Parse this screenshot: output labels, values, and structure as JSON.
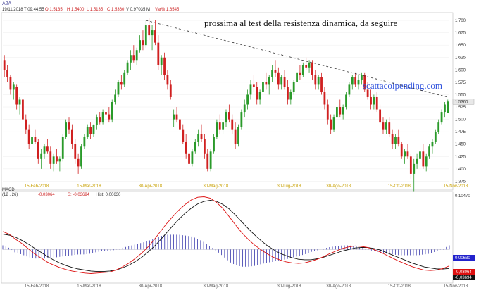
{
  "chart_data": {
    "type": "candlestick",
    "ticker": "A2A",
    "header": {
      "date": "19/11/2018",
      "time": "T 09:44:55",
      "open": "O 1,5135",
      "high": "H 1,5400",
      "low": "L 1,5135",
      "close": "C 1,5360",
      "volume": "V 0,97035 M",
      "var": "Var% 1,6545"
    },
    "annotation": "prossima al test della resistenza dinamica, da seguire",
    "watermark": "scattacolpending.com",
    "last_price": "1,5360",
    "y_ticks": [
      "1,700",
      "1,675",
      "1,650",
      "1,625",
      "1,600",
      "1,575",
      "1,550",
      "1,525",
      "1,500",
      "1,475",
      "1,450",
      "1,425",
      "1,400",
      "1,375"
    ],
    "ylim": [
      1.36,
      1.71
    ],
    "x_ticks": [
      "15-Feb-2018",
      "15-Mar-2018",
      "30-Apr-2018",
      "30-Mag-2018",
      "30-Lug-2018",
      "30-Ago-2018",
      "15-Ott-2018",
      "15-Nov-2018"
    ],
    "candles": [
      [
        1.62,
        1.63,
        1.585,
        1.6
      ],
      [
        1.6,
        1.61,
        1.575,
        1.585
      ],
      [
        1.585,
        1.59,
        1.55,
        1.56
      ],
      [
        1.56,
        1.575,
        1.54,
        1.57
      ],
      [
        1.565,
        1.57,
        1.52,
        1.53
      ],
      [
        1.53,
        1.545,
        1.51,
        1.54
      ],
      [
        1.54,
        1.545,
        1.49,
        1.5
      ],
      [
        1.5,
        1.51,
        1.47,
        1.48
      ],
      [
        1.48,
        1.49,
        1.44,
        1.45
      ],
      [
        1.45,
        1.47,
        1.43,
        1.465
      ],
      [
        1.465,
        1.48,
        1.45,
        1.455
      ],
      [
        1.455,
        1.46,
        1.41,
        1.42
      ],
      [
        1.42,
        1.44,
        1.4,
        1.43
      ],
      [
        1.43,
        1.45,
        1.42,
        1.445
      ],
      [
        1.445,
        1.46,
        1.43,
        1.435
      ],
      [
        1.435,
        1.445,
        1.4,
        1.41
      ],
      [
        1.41,
        1.43,
        1.395,
        1.425
      ],
      [
        1.425,
        1.44,
        1.41,
        1.415
      ],
      [
        1.415,
        1.425,
        1.395,
        1.42
      ],
      [
        1.42,
        1.47,
        1.415,
        1.465
      ],
      [
        1.465,
        1.5,
        1.46,
        1.495
      ],
      [
        1.495,
        1.505,
        1.47,
        1.48
      ],
      [
        1.48,
        1.49,
        1.44,
        1.45
      ],
      [
        1.45,
        1.46,
        1.41,
        1.42
      ],
      [
        1.42,
        1.43,
        1.39,
        1.405
      ],
      [
        1.405,
        1.45,
        1.4,
        1.445
      ],
      [
        1.445,
        1.47,
        1.44,
        1.465
      ],
      [
        1.465,
        1.49,
        1.46,
        1.485
      ],
      [
        1.485,
        1.495,
        1.46,
        1.47
      ],
      [
        1.47,
        1.49,
        1.465,
        1.488
      ],
      [
        1.488,
        1.51,
        1.48,
        1.505
      ],
      [
        1.505,
        1.515,
        1.49,
        1.495
      ],
      [
        1.495,
        1.52,
        1.49,
        1.515
      ],
      [
        1.515,
        1.53,
        1.5,
        1.51
      ],
      [
        1.51,
        1.525,
        1.495,
        1.5
      ],
      [
        1.5,
        1.54,
        1.495,
        1.535
      ],
      [
        1.535,
        1.56,
        1.53,
        1.55
      ],
      [
        1.55,
        1.58,
        1.545,
        1.575
      ],
      [
        1.575,
        1.59,
        1.56,
        1.57
      ],
      [
        1.57,
        1.6,
        1.565,
        1.595
      ],
      [
        1.595,
        1.62,
        1.59,
        1.615
      ],
      [
        1.615,
        1.64,
        1.6,
        1.63
      ],
      [
        1.63,
        1.65,
        1.615,
        1.62
      ],
      [
        1.62,
        1.645,
        1.61,
        1.64
      ],
      [
        1.64,
        1.67,
        1.635,
        1.66
      ],
      [
        1.66,
        1.68,
        1.64,
        1.65
      ],
      [
        1.65,
        1.7,
        1.645,
        1.69
      ],
      [
        1.69,
        1.705,
        1.66,
        1.67
      ],
      [
        1.67,
        1.69,
        1.64,
        1.68
      ],
      [
        1.68,
        1.7,
        1.65,
        1.655
      ],
      [
        1.655,
        1.67,
        1.6,
        1.61
      ],
      [
        1.61,
        1.63,
        1.59,
        1.625
      ],
      [
        1.625,
        1.635,
        1.58,
        1.59
      ],
      [
        1.59,
        1.6,
        1.56,
        1.57
      ],
      [
        1.57,
        1.58,
        1.54,
        1.545
      ],
      [
        1.5,
        1.52,
        1.485,
        1.51
      ],
      [
        1.51,
        1.525,
        1.495,
        1.5
      ],
      [
        1.5,
        1.51,
        1.47,
        1.48
      ],
      [
        1.48,
        1.49,
        1.45,
        1.455
      ],
      [
        1.455,
        1.47,
        1.42,
        1.43
      ],
      [
        1.43,
        1.445,
        1.4,
        1.41
      ],
      [
        1.41,
        1.44,
        1.405,
        1.435
      ],
      [
        1.435,
        1.46,
        1.43,
        1.455
      ],
      [
        1.455,
        1.48,
        1.445,
        1.47
      ],
      [
        1.47,
        1.49,
        1.455,
        1.46
      ],
      [
        1.46,
        1.47,
        1.42,
        1.43
      ],
      [
        1.43,
        1.44,
        1.395,
        1.4
      ],
      [
        1.4,
        1.44,
        1.395,
        1.435
      ],
      [
        1.435,
        1.47,
        1.43,
        1.465
      ],
      [
        1.465,
        1.5,
        1.46,
        1.495
      ],
      [
        1.495,
        1.51,
        1.47,
        1.48
      ],
      [
        1.48,
        1.5,
        1.47,
        1.495
      ],
      [
        1.495,
        1.52,
        1.485,
        1.515
      ],
      [
        1.515,
        1.53,
        1.495,
        1.5
      ],
      [
        1.5,
        1.51,
        1.47,
        1.48
      ],
      [
        1.48,
        1.495,
        1.44,
        1.45
      ],
      [
        1.45,
        1.49,
        1.445,
        1.485
      ],
      [
        1.485,
        1.52,
        1.48,
        1.515
      ],
      [
        1.515,
        1.54,
        1.505,
        1.53
      ],
      [
        1.53,
        1.56,
        1.52,
        1.55
      ],
      [
        1.55,
        1.58,
        1.54,
        1.57
      ],
      [
        1.57,
        1.59,
        1.555,
        1.565
      ],
      [
        1.565,
        1.575,
        1.53,
        1.54
      ],
      [
        1.54,
        1.56,
        1.53,
        1.555
      ],
      [
        1.555,
        1.58,
        1.55,
        1.575
      ],
      [
        1.575,
        1.595,
        1.56,
        1.57
      ],
      [
        1.57,
        1.59,
        1.55,
        1.585
      ],
      [
        1.585,
        1.61,
        1.575,
        1.6
      ],
      [
        1.6,
        1.62,
        1.585,
        1.595
      ],
      [
        1.595,
        1.605,
        1.56,
        1.57
      ],
      [
        1.57,
        1.59,
        1.56,
        1.585
      ],
      [
        1.585,
        1.6,
        1.56,
        1.565
      ],
      [
        1.565,
        1.58,
        1.53,
        1.54
      ],
      [
        1.54,
        1.56,
        1.53,
        1.555
      ],
      [
        1.555,
        1.58,
        1.55,
        1.575
      ],
      [
        1.575,
        1.6,
        1.565,
        1.595
      ],
      [
        1.595,
        1.61,
        1.58,
        1.59
      ],
      [
        1.59,
        1.615,
        1.585,
        1.61
      ],
      [
        1.61,
        1.625,
        1.6,
        1.605
      ],
      [
        1.605,
        1.62,
        1.595,
        1.615
      ],
      [
        1.615,
        1.62,
        1.58,
        1.59
      ],
      [
        1.59,
        1.6,
        1.56,
        1.57
      ],
      [
        1.57,
        1.59,
        1.56,
        1.585
      ],
      [
        1.585,
        1.595,
        1.55,
        1.555
      ],
      [
        1.555,
        1.565,
        1.52,
        1.53
      ],
      [
        1.53,
        1.54,
        1.49,
        1.5
      ],
      [
        1.5,
        1.51,
        1.47,
        1.48
      ],
      [
        1.48,
        1.51,
        1.475,
        1.505
      ],
      [
        1.505,
        1.53,
        1.5,
        1.525
      ],
      [
        1.525,
        1.54,
        1.505,
        1.51
      ],
      [
        1.51,
        1.53,
        1.5,
        1.525
      ],
      [
        1.525,
        1.555,
        1.52,
        1.55
      ],
      [
        1.55,
        1.575,
        1.545,
        1.57
      ],
      [
        1.57,
        1.59,
        1.56,
        1.585
      ],
      [
        1.585,
        1.595,
        1.565,
        1.57
      ],
      [
        1.57,
        1.59,
        1.56,
        1.58
      ],
      [
        1.58,
        1.595,
        1.57,
        1.59
      ],
      [
        1.59,
        1.595,
        1.555,
        1.56
      ],
      [
        1.56,
        1.575,
        1.54,
        1.545
      ],
      [
        1.545,
        1.56,
        1.52,
        1.53
      ],
      [
        1.53,
        1.55,
        1.52,
        1.545
      ],
      [
        1.545,
        1.555,
        1.515,
        1.52
      ],
      [
        1.52,
        1.53,
        1.49,
        1.495
      ],
      [
        1.495,
        1.505,
        1.47,
        1.48
      ],
      [
        1.48,
        1.5,
        1.47,
        1.495
      ],
      [
        1.495,
        1.505,
        1.465,
        1.47
      ],
      [
        1.47,
        1.48,
        1.44,
        1.45
      ],
      [
        1.45,
        1.47,
        1.44,
        1.465
      ],
      [
        1.465,
        1.48,
        1.445,
        1.45
      ],
      [
        1.45,
        1.455,
        1.42,
        1.425
      ],
      [
        1.425,
        1.44,
        1.41,
        1.435
      ],
      [
        1.435,
        1.45,
        1.42,
        1.425
      ],
      [
        1.425,
        1.43,
        1.38,
        1.39
      ],
      [
        1.39,
        1.42,
        1.355,
        1.41
      ],
      [
        1.41,
        1.43,
        1.4,
        1.42
      ],
      [
        1.42,
        1.44,
        1.41,
        1.435
      ],
      [
        1.435,
        1.45,
        1.4,
        1.405
      ],
      [
        1.405,
        1.43,
        1.395,
        1.425
      ],
      [
        1.425,
        1.45,
        1.42,
        1.445
      ],
      [
        1.445,
        1.46,
        1.43,
        1.455
      ],
      [
        1.455,
        1.48,
        1.45,
        1.475
      ],
      [
        1.475,
        1.5,
        1.47,
        1.495
      ],
      [
        1.495,
        1.52,
        1.49,
        1.515
      ],
      [
        1.515,
        1.535,
        1.505,
        1.53
      ],
      [
        1.513,
        1.54,
        1.513,
        1.536
      ]
    ],
    "trendline": {
      "x_ticks": [
        "30-Apr-2018",
        "15-Nov-2018"
      ],
      "y": [
        1.7,
        1.545
      ]
    },
    "macd": {
      "label": "MACD",
      "params": "(12 , 26)",
      "value_text": "-0,03064",
      "signal_text": "S: -0,03694",
      "hist_text": "Hist: 0,00630",
      "ylim": [
        -0.06,
        0.105
      ],
      "y_ticks": [
        "0,10470"
      ],
      "badges": {
        "hist": "0,00630",
        "macd": "-0,03064",
        "signal": "-0,03694"
      },
      "macd_line": [
        0.035,
        0.03,
        0.02,
        0.012,
        0.002,
        -0.008,
        -0.016,
        -0.024,
        -0.03,
        -0.035,
        -0.039,
        -0.042,
        -0.044,
        -0.046,
        -0.047,
        -0.046,
        -0.045,
        -0.044,
        -0.04,
        -0.034,
        -0.027,
        -0.018,
        -0.008,
        0.004,
        0.018,
        0.034,
        0.05,
        0.064,
        0.077,
        0.088,
        0.097,
        0.102,
        0.103,
        0.1,
        0.092,
        0.08,
        0.064,
        0.048,
        0.033,
        0.02,
        0.009,
        0.0,
        -0.008,
        -0.015,
        -0.02,
        -0.024,
        -0.026,
        -0.027,
        -0.026,
        -0.023,
        -0.019,
        -0.014,
        -0.008,
        -0.003,
        0.002,
        0.005,
        0.007,
        0.006,
        0.004,
        0.0,
        -0.005,
        -0.011,
        -0.017,
        -0.023,
        -0.028,
        -0.033,
        -0.037,
        -0.04,
        -0.041,
        -0.04,
        -0.037,
        -0.032
      ],
      "signal_line": [
        0.03,
        0.028,
        0.024,
        0.018,
        0.011,
        0.003,
        -0.005,
        -0.013,
        -0.02,
        -0.026,
        -0.031,
        -0.035,
        -0.038,
        -0.04,
        -0.042,
        -0.043,
        -0.043,
        -0.042,
        -0.04,
        -0.036,
        -0.031,
        -0.024,
        -0.016,
        -0.006,
        0.005,
        0.018,
        0.032,
        0.046,
        0.059,
        0.071,
        0.081,
        0.089,
        0.094,
        0.096,
        0.094,
        0.088,
        0.079,
        0.067,
        0.054,
        0.041,
        0.029,
        0.018,
        0.008,
        0.0,
        -0.007,
        -0.012,
        -0.016,
        -0.019,
        -0.02,
        -0.02,
        -0.018,
        -0.015,
        -0.011,
        -0.007,
        -0.003,
        0.0,
        0.003,
        0.004,
        0.004,
        0.002,
        -0.001,
        -0.006,
        -0.011,
        -0.016,
        -0.021,
        -0.026,
        -0.03,
        -0.034,
        -0.036,
        -0.038,
        -0.038,
        -0.037
      ]
    }
  }
}
